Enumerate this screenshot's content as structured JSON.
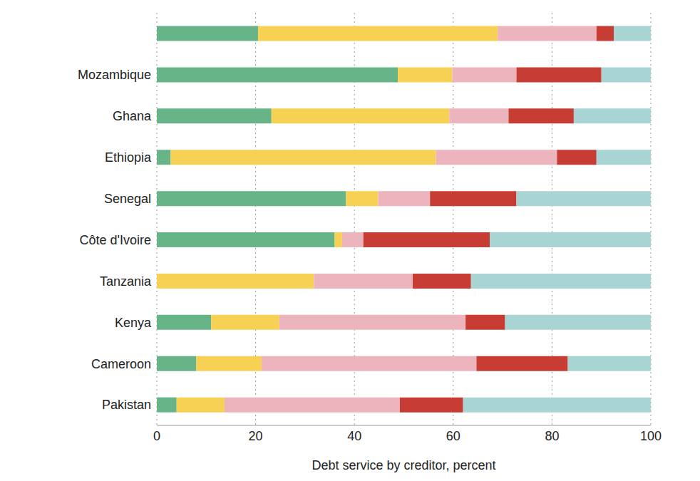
{
  "chart_data": {
    "type": "bar",
    "orientation": "horizontal",
    "stacked": true,
    "grid": true,
    "xlabel": "Debt service by creditor, percent",
    "categories": [
      null,
      "Mozambique",
      "Ghana",
      "Ethiopia",
      "Senegal",
      "Côte d'Ivoire",
      "Tanzania",
      "Kenya",
      "Cameroon",
      "Pakistan"
    ],
    "xlim": [
      0,
      100
    ],
    "xticks": [
      0,
      20,
      40,
      60,
      80,
      100
    ],
    "series": [
      {
        "color": "#66b487",
        "values": [
          20.5,
          48.8,
          23.2,
          2.8,
          38.3,
          36,
          0,
          11,
          8,
          4
        ]
      },
      {
        "color": "#f7d154",
        "values": [
          48.5,
          11,
          36,
          53.7,
          6.5,
          1.5,
          31.8,
          13.8,
          13.2,
          9.7
        ]
      },
      {
        "color": "#ecb4bc",
        "values": [
          20,
          13,
          12,
          24.5,
          10.5,
          4.3,
          20,
          37.7,
          43.5,
          35.5
        ]
      },
      {
        "color": "#c83d33",
        "values": [
          3.5,
          17.2,
          13.2,
          8,
          17.5,
          25.6,
          11.8,
          8,
          18.5,
          12.8
        ]
      },
      {
        "color": "#a8d4d3",
        "values": [
          7.5,
          10,
          15.6,
          11,
          27.2,
          32.6,
          36.4,
          29.5,
          16.8,
          38
        ]
      }
    ]
  }
}
